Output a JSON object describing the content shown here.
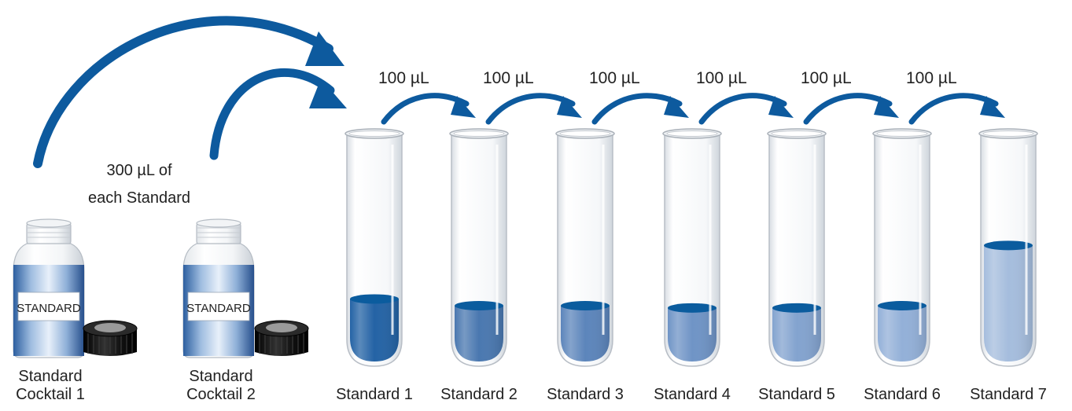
{
  "transfer_label_line1": "300 µL of",
  "transfer_label_line2": "each Standard",
  "bottles": [
    {
      "label_text": "STANDARD",
      "name_line1": "Standard",
      "name_line2": "Cocktail 1"
    },
    {
      "label_text": "STANDARD",
      "name_line1": "Standard",
      "name_line2": "Cocktail 2"
    }
  ],
  "serial_transfer_volume": "100 µL",
  "tubes": [
    {
      "name": "Standard 1",
      "fill_fraction": 0.28,
      "color": "#2463a5"
    },
    {
      "name": "Standard 2",
      "fill_fraction": 0.25,
      "color": "#4a78b0"
    },
    {
      "name": "Standard 3",
      "fill_fraction": 0.25,
      "color": "#5c85bb"
    },
    {
      "name": "Standard 4",
      "fill_fraction": 0.24,
      "color": "#6f94c6"
    },
    {
      "name": "Standard 5",
      "fill_fraction": 0.24,
      "color": "#83a3cf"
    },
    {
      "name": "Standard 6",
      "fill_fraction": 0.25,
      "color": "#93b0d8"
    },
    {
      "name": "Standard 7",
      "fill_fraction": 0.52,
      "color": "#a5bddd"
    }
  ],
  "colors": {
    "arrow": "#0d5a9e",
    "liquid_surface": "#0b5c9e",
    "cap": "#1a1a1a"
  }
}
